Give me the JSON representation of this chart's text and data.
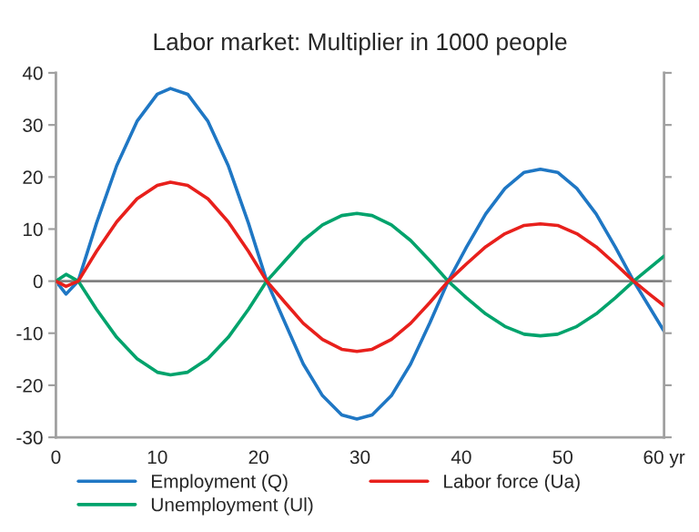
{
  "chart_data": {
    "type": "line",
    "title": "Labor market: Multiplier in 1000 people",
    "x": [
      0,
      1,
      2.2,
      4,
      6,
      8,
      10,
      11.3,
      13,
      15,
      17,
      19,
      20.8,
      22.6,
      24.4,
      26.3,
      28.2,
      29.7,
      31.2,
      33.1,
      35,
      36.9,
      38.7,
      40.5,
      42.4,
      44.3,
      46.2,
      47.8,
      49.5,
      51.4,
      53.3,
      55.2,
      57,
      58.5,
      60
    ],
    "series": [
      {
        "name": "Employment (Q)",
        "color": "#1f77c4",
        "values": [
          0,
          -2.5,
          0,
          11.1,
          22.2,
          30.7,
          35.9,
          37,
          35.9,
          30.7,
          22.2,
          11.1,
          0,
          -8,
          -15.9,
          -22,
          -25.7,
          -26.5,
          -25.7,
          -22,
          -15.9,
          -8,
          0,
          6.5,
          12.9,
          17.8,
          20.9,
          21.5,
          20.9,
          17.8,
          12.9,
          6.5,
          0,
          -4.8,
          -9.6
        ]
      },
      {
        "name": "Unemployment (Ul)",
        "color": "#00a36c",
        "values": [
          0,
          1.3,
          0,
          -5.4,
          -10.8,
          -14.9,
          -17.5,
          -18,
          -17.5,
          -14.9,
          -10.8,
          -5.4,
          0,
          3.9,
          7.8,
          10.8,
          12.6,
          13,
          12.6,
          10.8,
          7.8,
          3.9,
          0,
          -3.2,
          -6.3,
          -8.7,
          -10.2,
          -10.5,
          -10.2,
          -8.7,
          -6.3,
          -3.2,
          0,
          2.4,
          4.8
        ]
      },
      {
        "name": "Labor force (Ua)",
        "color": "#e8201c",
        "values": [
          0,
          -1,
          0,
          5.7,
          11.4,
          15.8,
          18.4,
          19,
          18.4,
          15.8,
          11.4,
          5.7,
          0,
          -4.1,
          -8.1,
          -11.2,
          -13.1,
          -13.5,
          -13.1,
          -11.2,
          -8.1,
          -4.1,
          0,
          3.3,
          6.6,
          9.1,
          10.7,
          11,
          10.7,
          9.1,
          6.6,
          3.3,
          0,
          -2.4,
          -4.7
        ]
      }
    ],
    "xlim": [
      0,
      60
    ],
    "xticks": [
      0,
      10,
      20,
      30,
      40,
      50,
      {
        "value": 60,
        "label": "60 yr"
      }
    ],
    "ylim": [
      -30,
      40
    ],
    "yticks": [
      -30,
      -20,
      -10,
      0,
      10,
      20,
      30,
      40
    ],
    "ref_lines": [
      {
        "axis": "y",
        "value": 0,
        "color": "#808080"
      }
    ],
    "grid": false,
    "legend": "bottom",
    "marker": "none",
    "line_style": "solid"
  }
}
